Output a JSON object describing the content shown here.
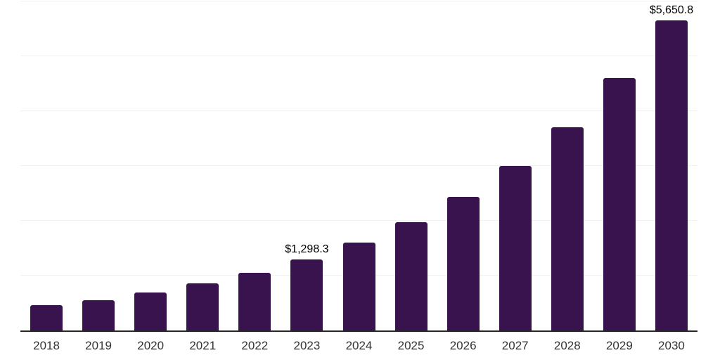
{
  "chart_data": {
    "type": "bar",
    "title": "",
    "xlabel": "",
    "ylabel": "",
    "categories": [
      "2018",
      "2019",
      "2020",
      "2021",
      "2022",
      "2023",
      "2024",
      "2025",
      "2026",
      "2027",
      "2028",
      "2029",
      "2030"
    ],
    "values": [
      460,
      552,
      690,
      858,
      1050,
      1298.3,
      1601.6,
      1975.9,
      2437.6,
      3000,
      3710,
      4600,
      5650.8
    ],
    "point_labels": {
      "2023": "$1,298.3",
      "2030": "$5,650.8"
    },
    "ylim": [
      0,
      6000
    ],
    "grid": true,
    "gridline_values": [
      1000,
      2000,
      3000,
      4000,
      5000,
      6000
    ],
    "legend": "none",
    "colors": {
      "bar": "#38134d",
      "axis_line": "#262626",
      "gridline": "#f2f2f2",
      "tick_label": "#333333",
      "value_label": "#000000",
      "background": "#ffffff"
    }
  }
}
